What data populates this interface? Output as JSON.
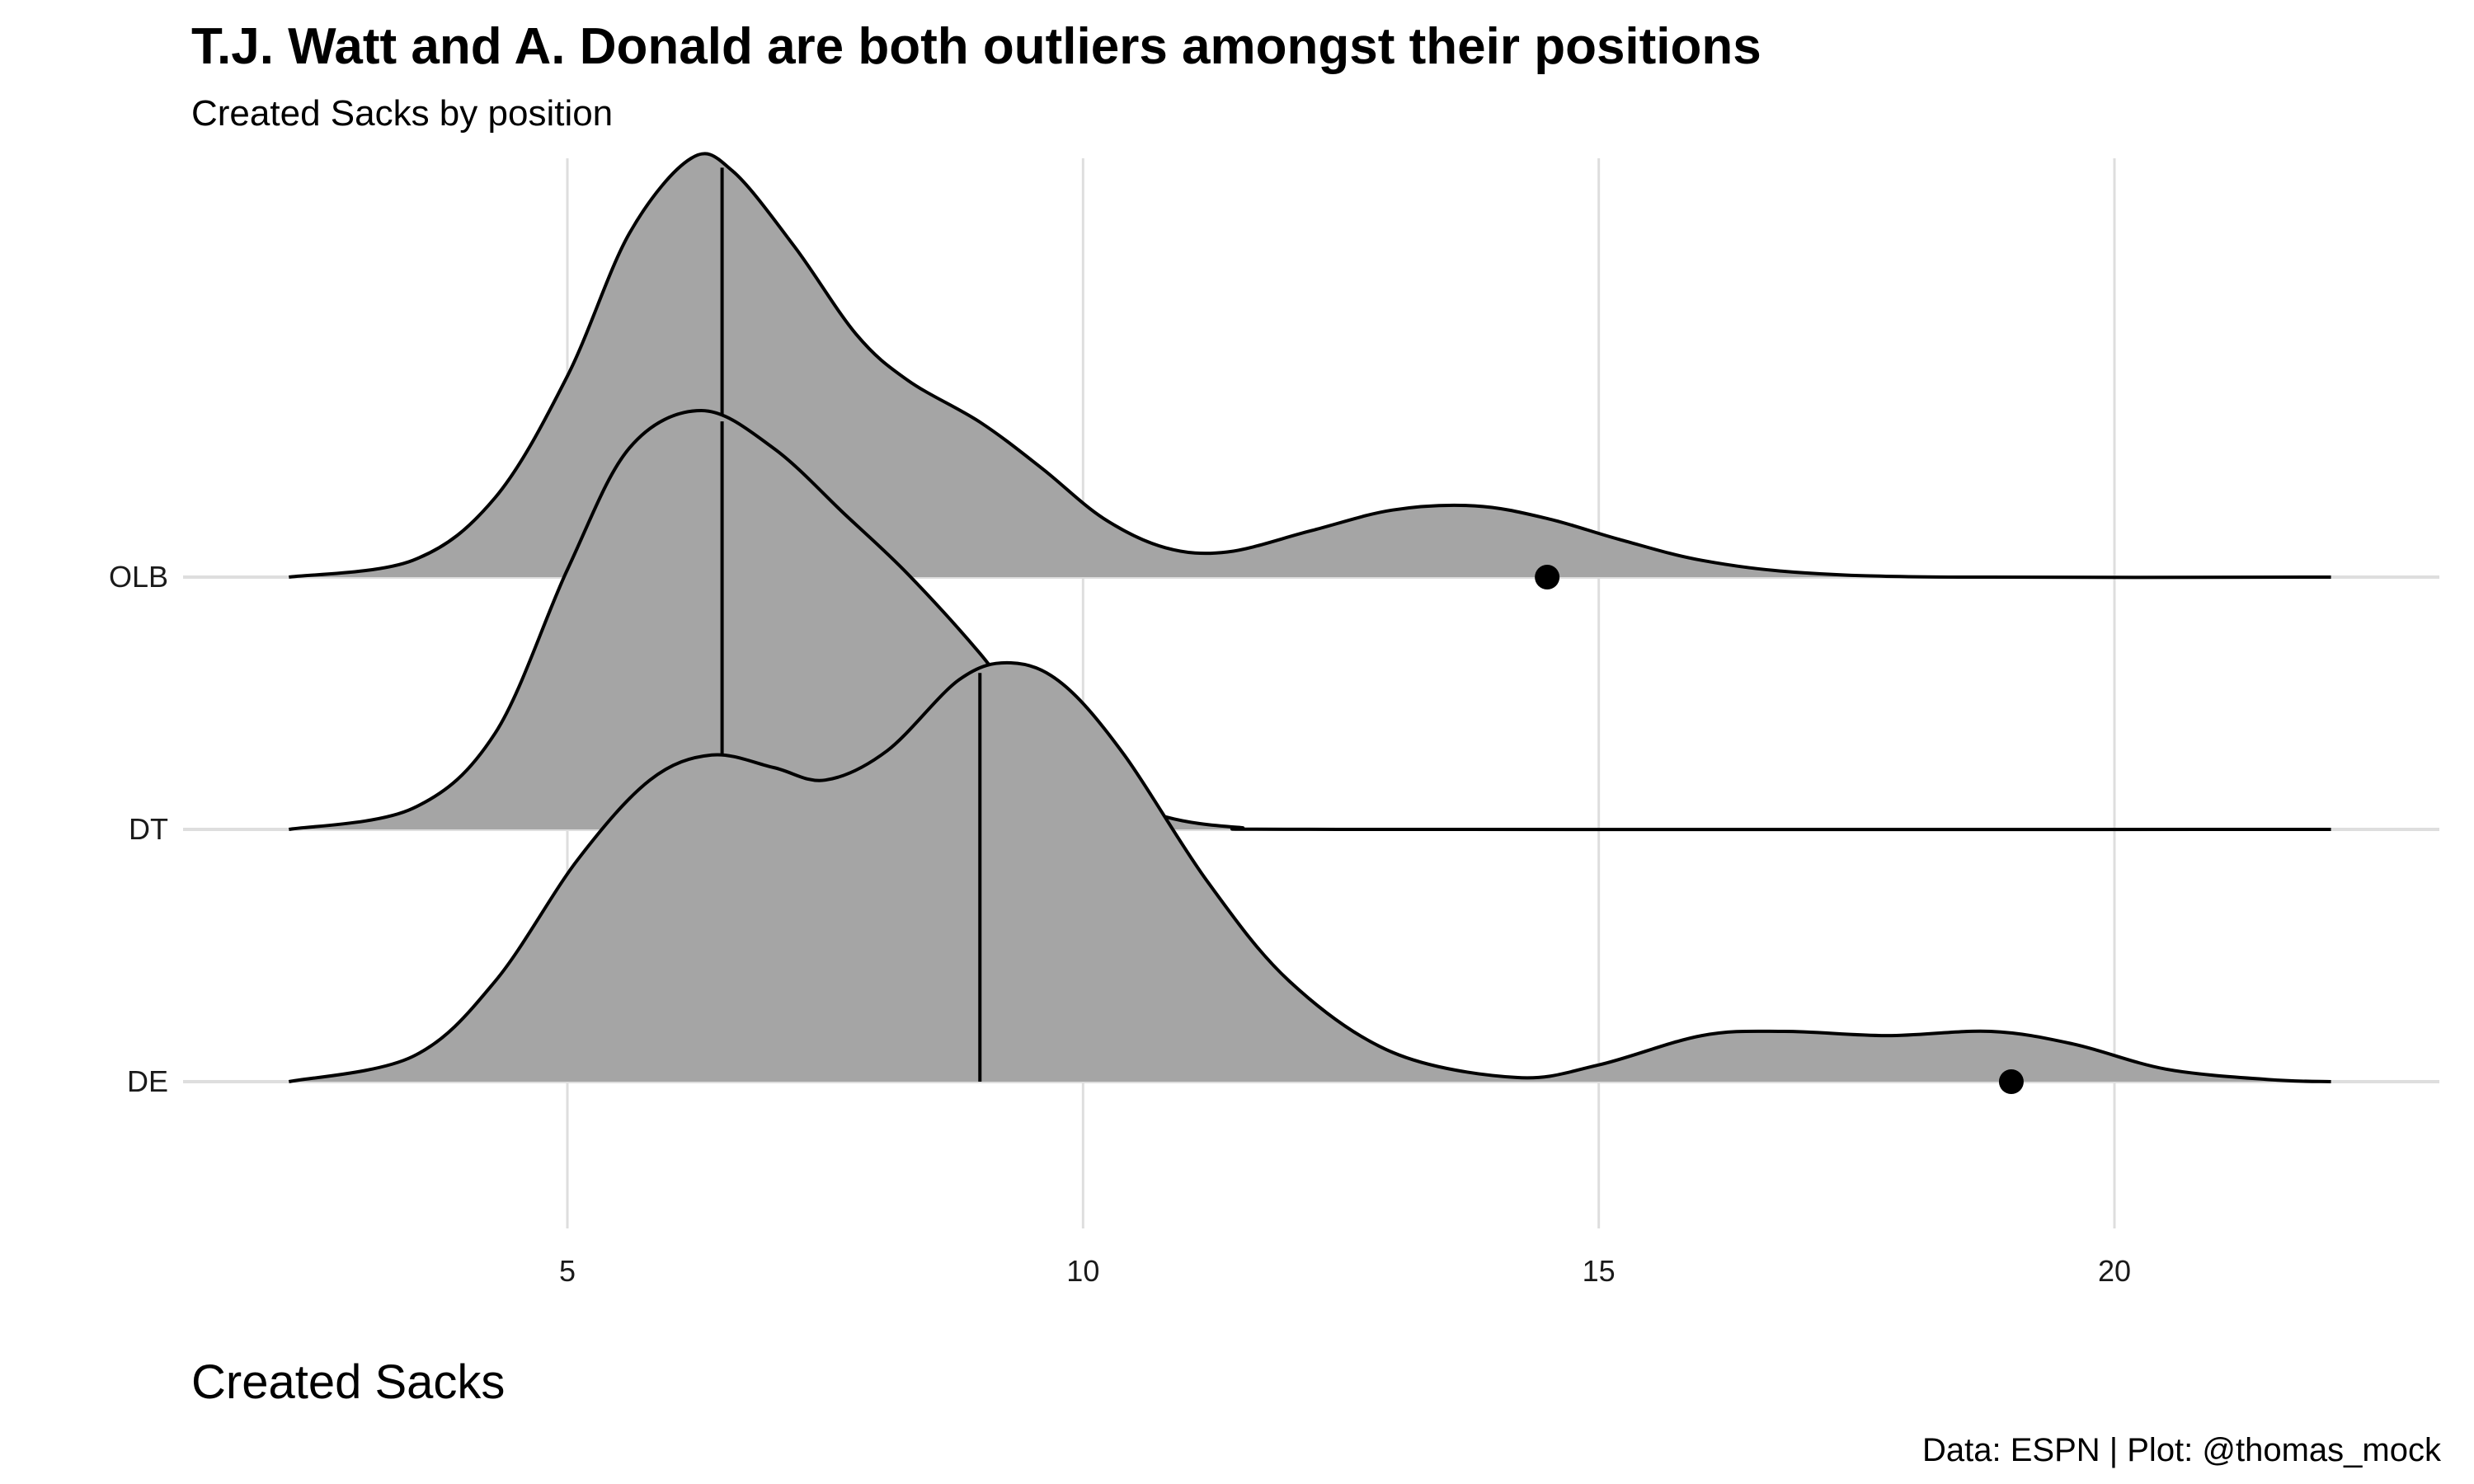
{
  "chart_data": {
    "type": "ridgeline",
    "title": "T.J. Watt and A. Donald are both outliers amongst their positions",
    "subtitle": "Created Sacks by position",
    "xlabel": "Created Sacks",
    "ylabel": "",
    "caption": "Data: ESPN | Plot: @thomas_mock",
    "xlim": [
      2.3,
      22.1
    ],
    "x_ticks": [
      5,
      10,
      15,
      20
    ],
    "grid": true,
    "fill_color": "#a5a5a5",
    "line_color": "#000000",
    "categories": [
      "DE",
      "DT",
      "OLB"
    ],
    "series": [
      {
        "name": "OLB",
        "median": 6.5,
        "highlight_point": 14.5,
        "density": [
          [
            2.3,
            0.0
          ],
          [
            3.5,
            0.04
          ],
          [
            4.3,
            0.19
          ],
          [
            5.0,
            0.48
          ],
          [
            5.6,
            0.82
          ],
          [
            6.2,
            1.0
          ],
          [
            6.6,
            0.97
          ],
          [
            7.2,
            0.79
          ],
          [
            7.8,
            0.58
          ],
          [
            8.3,
            0.47
          ],
          [
            9.0,
            0.37
          ],
          [
            9.6,
            0.26
          ],
          [
            10.2,
            0.14
          ],
          [
            10.8,
            0.07
          ],
          [
            11.4,
            0.06
          ],
          [
            12.2,
            0.11
          ],
          [
            13.0,
            0.16
          ],
          [
            13.8,
            0.17
          ],
          [
            14.5,
            0.14
          ],
          [
            15.2,
            0.09
          ],
          [
            16.0,
            0.04
          ],
          [
            17.0,
            0.01
          ],
          [
            18.5,
            0.0
          ],
          [
            22.1,
            0.0
          ]
        ]
      },
      {
        "name": "DT",
        "median": 6.5,
        "highlight_point": null,
        "density": [
          [
            2.3,
            0.0
          ],
          [
            3.5,
            0.05
          ],
          [
            4.3,
            0.23
          ],
          [
            5.0,
            0.62
          ],
          [
            5.6,
            0.91
          ],
          [
            6.3,
            1.0
          ],
          [
            7.0,
            0.91
          ],
          [
            7.7,
            0.75
          ],
          [
            8.3,
            0.61
          ],
          [
            9.0,
            0.42
          ],
          [
            9.6,
            0.23
          ],
          [
            10.2,
            0.09
          ],
          [
            10.8,
            0.03
          ],
          [
            11.5,
            0.005
          ],
          [
            12.5,
            0.0
          ],
          [
            22.1,
            0.0
          ]
        ]
      },
      {
        "name": "DE",
        "median": 9.0,
        "highlight_point": 19.0,
        "density": [
          [
            2.3,
            0.0
          ],
          [
            3.5,
            0.06
          ],
          [
            4.3,
            0.24
          ],
          [
            5.1,
            0.53
          ],
          [
            5.8,
            0.72
          ],
          [
            6.4,
            0.78
          ],
          [
            7.0,
            0.75
          ],
          [
            7.5,
            0.72
          ],
          [
            8.1,
            0.79
          ],
          [
            8.8,
            0.96
          ],
          [
            9.3,
            1.0
          ],
          [
            9.8,
            0.95
          ],
          [
            10.4,
            0.78
          ],
          [
            11.2,
            0.48
          ],
          [
            12.0,
            0.24
          ],
          [
            13.0,
            0.07
          ],
          [
            14.2,
            0.01
          ],
          [
            15.0,
            0.04
          ],
          [
            16.0,
            0.11
          ],
          [
            16.8,
            0.12
          ],
          [
            17.8,
            0.11
          ],
          [
            18.8,
            0.12
          ],
          [
            19.6,
            0.09
          ],
          [
            20.5,
            0.03
          ],
          [
            21.5,
            0.005
          ],
          [
            22.1,
            0.0
          ]
        ]
      }
    ]
  }
}
